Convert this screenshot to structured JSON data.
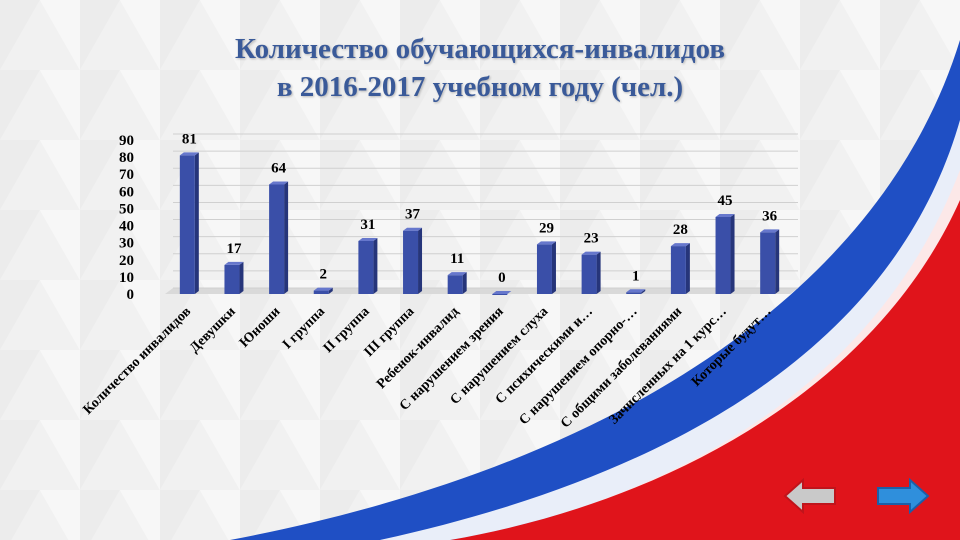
{
  "slide": {
    "title_line1": "Количество обучающихся-инвалидов",
    "title_line2": "в 2016-2017 учебном году (чел.)"
  },
  "colors": {
    "title": "#3a5a99",
    "bar": "#3a4fa8",
    "flag_blue": "#1f4fc4",
    "flag_red": "#e0141b",
    "nav_arrow_blue": "#2f8fdc",
    "nav_arrow_grey": "#c9c9c9",
    "nav_arrow_red_border": "#c0141b"
  },
  "nav": {
    "prev_icon": "arrow-left-icon",
    "next_icon": "arrow-right-icon"
  },
  "chart_data": {
    "type": "bar",
    "categories": [
      "Количество инвалидов",
      "Девушки",
      "Юноши",
      "I группа",
      "II группа",
      "III группа",
      "Ребенок-инвалид",
      "С нарушением зрения",
      "С нарушением слуха",
      "С психическими и…",
      "С нарушением опорно-…",
      "С общими заболеваниями",
      "Зачисленных на 1 курс…",
      "Которые будут…"
    ],
    "values": [
      81,
      17,
      64,
      2,
      31,
      37,
      11,
      0,
      29,
      23,
      1,
      28,
      45,
      36
    ],
    "yticks": [
      "0",
      "10",
      "20",
      "30",
      "40",
      "50",
      "60",
      "70",
      "80",
      "90"
    ],
    "ylim": [
      0,
      90
    ],
    "grid": true,
    "legend": "none"
  }
}
